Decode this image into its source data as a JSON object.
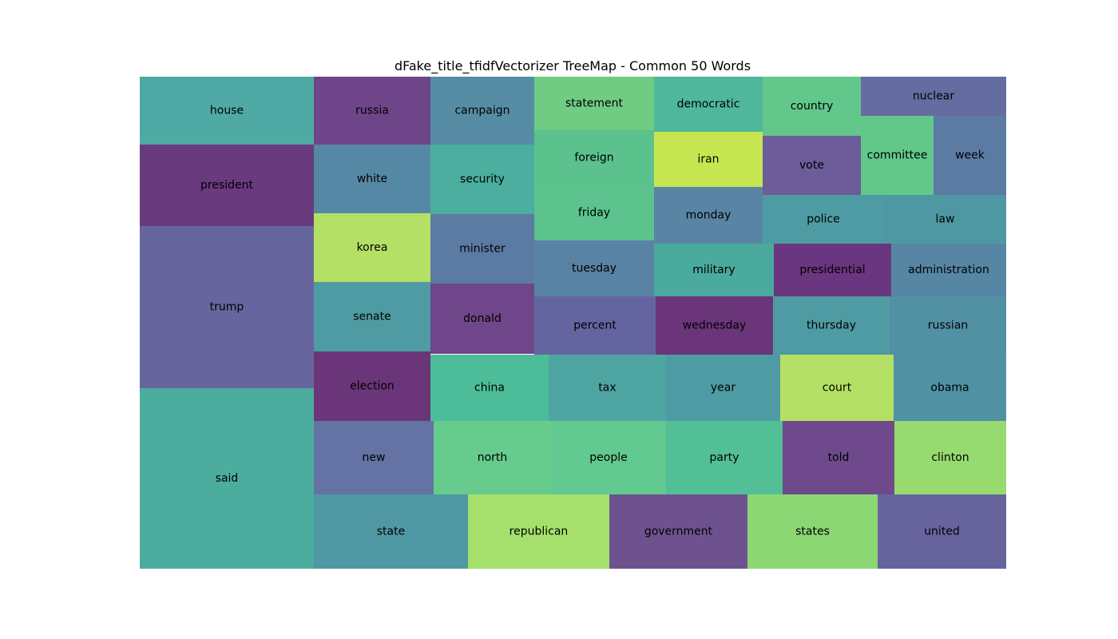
{
  "chart_data": {
    "type": "treemap",
    "title": "dFake_title_tfidfVectorizer TreeMap - Common 50 Words",
    "items": [
      {
        "label": "house",
        "color": "#4fa9a5"
      },
      {
        "label": "president",
        "color": "#6a3a7e"
      },
      {
        "label": "trump",
        "color": "#67659d"
      },
      {
        "label": "said",
        "color": "#4cad9f"
      },
      {
        "label": "russia",
        "color": "#6e4589"
      },
      {
        "label": "white",
        "color": "#5588a5"
      },
      {
        "label": "korea",
        "color": "#b4e065"
      },
      {
        "label": "senate",
        "color": "#4f9ba3"
      },
      {
        "label": "election",
        "color": "#6a3579"
      },
      {
        "label": "campaign",
        "color": "#568da4"
      },
      {
        "label": "security",
        "color": "#4bae9f"
      },
      {
        "label": "minister",
        "color": "#5c7ba3"
      },
      {
        "label": "donald",
        "color": "#6e4689"
      },
      {
        "label": "statement",
        "color": "#70cc83"
      },
      {
        "label": "foreign",
        "color": "#5bc28e"
      },
      {
        "label": "friday",
        "color": "#5cc38e"
      },
      {
        "label": "democratic",
        "color": "#4fb79b"
      },
      {
        "label": "iran",
        "color": "#c6e651"
      },
      {
        "label": "monday",
        "color": "#5984a3"
      },
      {
        "label": "country",
        "color": "#61c78b"
      },
      {
        "label": "vote",
        "color": "#6c5c99"
      },
      {
        "label": "nuclear",
        "color": "#646ca1"
      },
      {
        "label": "committee",
        "color": "#62c88a"
      },
      {
        "label": "week",
        "color": "#5b7ba3"
      },
      {
        "label": "police",
        "color": "#4f9ba3"
      },
      {
        "label": "law",
        "color": "#4e98a3"
      },
      {
        "label": "tuesday",
        "color": "#5883a5"
      },
      {
        "label": "military",
        "color": "#4aaa9d"
      },
      {
        "label": "presidential",
        "color": "#6a3680"
      },
      {
        "label": "administration",
        "color": "#5686a4"
      },
      {
        "label": "percent",
        "color": "#6465a0"
      },
      {
        "label": "wednesday",
        "color": "#6a3579"
      },
      {
        "label": "thursday",
        "color": "#4f9ba3"
      },
      {
        "label": "russian",
        "color": "#5290a4"
      },
      {
        "label": "china",
        "color": "#4dbc98"
      },
      {
        "label": "tax",
        "color": "#4ea5a2"
      },
      {
        "label": "year",
        "color": "#4f9ba3"
      },
      {
        "label": "court",
        "color": "#b4e065"
      },
      {
        "label": "obama",
        "color": "#5092a3"
      },
      {
        "label": "new",
        "color": "#6473a3"
      },
      {
        "label": "north",
        "color": "#67cb8d"
      },
      {
        "label": "people",
        "color": "#62c990"
      },
      {
        "label": "party",
        "color": "#53bf96"
      },
      {
        "label": "told",
        "color": "#6e4a8c"
      },
      {
        "label": "clinton",
        "color": "#97db70"
      },
      {
        "label": "state",
        "color": "#5098a3"
      },
      {
        "label": "republican",
        "color": "#a5e06c"
      },
      {
        "label": "government",
        "color": "#6e5290"
      },
      {
        "label": "states",
        "color": "#8ad774"
      },
      {
        "label": "united",
        "color": "#67649d"
      }
    ]
  }
}
